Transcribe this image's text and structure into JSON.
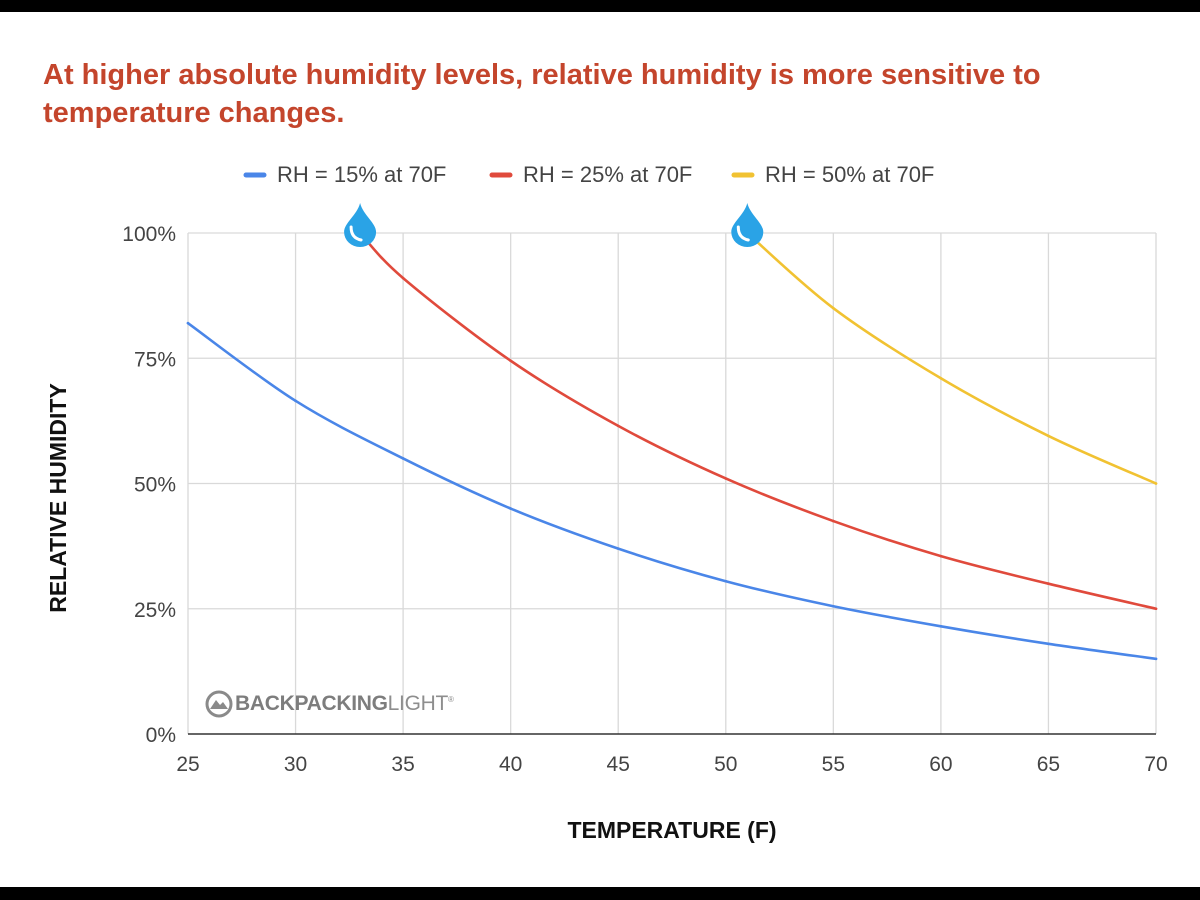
{
  "title": "At higher absolute humidity levels, relative humidity is more sensitive to temperature changes.",
  "logo": {
    "bold": "BACKPACKING",
    "light": "LIGHT",
    "mark": "®"
  },
  "chart_data": {
    "type": "line",
    "title": "At higher absolute humidity levels, relative humidity is more sensitive to temperature changes.",
    "xlabel": "TEMPERATURE (F)",
    "ylabel": "RELATIVE HUMIDITY",
    "xlim": [
      25,
      70
    ],
    "ylim": [
      0,
      100
    ],
    "x_ticks": [
      "25",
      "30",
      "35",
      "40",
      "45",
      "50",
      "55",
      "60",
      "65",
      "70"
    ],
    "y_ticks": [
      "0%",
      "25%",
      "50%",
      "75%",
      "100%"
    ],
    "grid": true,
    "legend_position": "top",
    "series": [
      {
        "name": "RH = 15% at 70F",
        "color": "#4a86e8",
        "x": [
          25,
          30,
          35,
          40,
          45,
          50,
          55,
          60,
          65,
          70
        ],
        "y": [
          82,
          66.5,
          55,
          45,
          37,
          30.5,
          25.5,
          21.5,
          18,
          15
        ]
      },
      {
        "name": "RH = 25% at 70F",
        "color": "#e04a3c",
        "marker": "water-drop-icon",
        "x": [
          33,
          35,
          40,
          45,
          50,
          55,
          60,
          65,
          70
        ],
        "y": [
          100,
          91,
          74.5,
          61.5,
          51,
          42.5,
          35.5,
          30,
          25
        ]
      },
      {
        "name": "RH = 50% at 70F",
        "color": "#f1c232",
        "marker": "water-drop-icon",
        "x": [
          51,
          55,
          60,
          65,
          70
        ],
        "y": [
          100,
          85,
          71,
          59.5,
          50
        ]
      }
    ]
  }
}
